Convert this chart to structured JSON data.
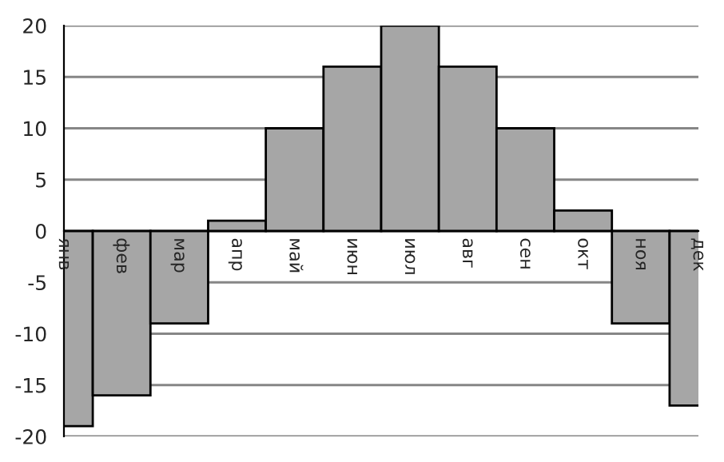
{
  "chart_data": {
    "type": "bar",
    "categories": [
      "янв",
      "фев",
      "мар",
      "апр",
      "май",
      "июн",
      "июл",
      "авг",
      "сен",
      "окт",
      "ноя",
      "дек"
    ],
    "values": [
      -19,
      -16,
      -9,
      1,
      10,
      16,
      20,
      16,
      10,
      2,
      -9,
      -17
    ],
    "color": "#a6a6a6",
    "ylim": [
      -20,
      20
    ],
    "yticks": [
      -20,
      -15,
      -10,
      -5,
      0,
      5,
      10,
      15,
      20
    ],
    "grid": "y"
  }
}
